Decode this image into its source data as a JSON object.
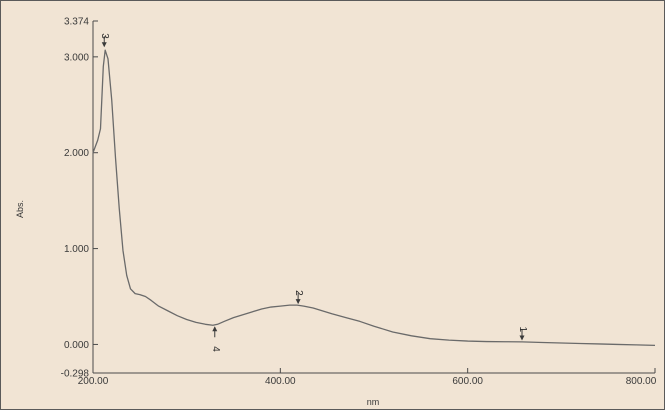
{
  "chart_data": {
    "type": "line",
    "title": "",
    "xlabel": "nm",
    "ylabel": "Abs.",
    "xlim": [
      200.0,
      800.0
    ],
    "ylim": [
      -0.298,
      3.374
    ],
    "x_ticks": [
      {
        "value": 200,
        "label": "200.00"
      },
      {
        "value": 400,
        "label": "400.00"
      },
      {
        "value": 600,
        "label": "600.00"
      },
      {
        "value": 800,
        "label": "800.00"
      }
    ],
    "y_ticks": [
      {
        "value": 3.374,
        "label": "3.374"
      },
      {
        "value": 3.0,
        "label": "3.000"
      },
      {
        "value": 2.0,
        "label": "2.000"
      },
      {
        "value": 1.0,
        "label": "1.000"
      },
      {
        "value": 0.0,
        "label": "0.000"
      },
      {
        "value": -0.298,
        "label": "-0.298"
      }
    ],
    "grid": false,
    "series": [
      {
        "x": [
          200,
          205,
          208,
          211,
          213,
          216,
          220,
          224,
          228,
          232,
          236,
          240,
          245,
          250,
          256,
          262,
          270,
          280,
          290,
          300,
          310,
          320,
          328,
          333,
          340,
          350,
          360,
          370,
          380,
          390,
          400,
          410,
          418,
          425,
          435,
          445,
          455,
          470,
          485,
          500,
          520,
          540,
          560,
          580,
          600,
          620,
          640,
          658,
          680,
          700,
          720,
          740,
          760,
          780,
          800
        ],
        "y": [
          2.0,
          2.13,
          2.25,
          2.9,
          3.07,
          2.98,
          2.55,
          1.95,
          1.42,
          0.98,
          0.72,
          0.58,
          0.53,
          0.52,
          0.5,
          0.46,
          0.4,
          0.35,
          0.3,
          0.26,
          0.23,
          0.21,
          0.2,
          0.21,
          0.24,
          0.28,
          0.31,
          0.34,
          0.37,
          0.39,
          0.4,
          0.41,
          0.41,
          0.4,
          0.38,
          0.35,
          0.32,
          0.28,
          0.24,
          0.19,
          0.13,
          0.09,
          0.06,
          0.045,
          0.035,
          0.03,
          0.028,
          0.027,
          0.02,
          0.015,
          0.01,
          0.005,
          0.0,
          -0.005,
          -0.01
        ]
      }
    ],
    "annotations": [
      {
        "label": "3",
        "x": 212,
        "y": 3.09,
        "side": "above"
      },
      {
        "label": "2",
        "x": 419,
        "y": 0.41,
        "side": "above"
      },
      {
        "label": "1",
        "x": 658,
        "y": 0.03,
        "side": "above"
      },
      {
        "label": "4",
        "x": 330,
        "y": 0.2,
        "side": "below"
      }
    ]
  }
}
